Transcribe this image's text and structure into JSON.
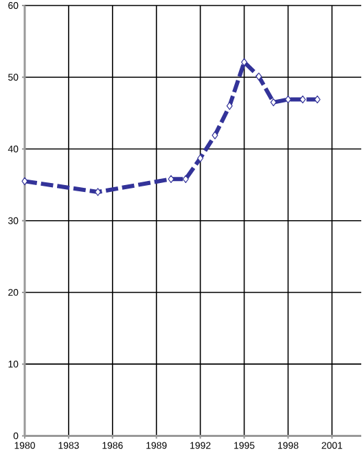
{
  "chart_data": {
    "type": "line",
    "x": [
      1980,
      1985,
      1990,
      1991,
      1992,
      1993,
      1994,
      1995,
      1996,
      1997,
      1998,
      1999,
      2000
    ],
    "values": [
      35.5,
      34.0,
      35.8,
      35.8,
      38.7,
      41.9,
      46.0,
      52.1,
      50.1,
      46.5,
      46.9,
      46.9,
      46.9
    ],
    "color": "#333399",
    "marker": "diamond",
    "line_style": "dashed",
    "grid": true,
    "xlim": [
      1980,
      2003
    ],
    "xticks": [
      1980,
      1983,
      1986,
      1989,
      1992,
      1995,
      1998,
      2001
    ],
    "ylim": [
      0,
      60
    ],
    "yticks": [
      0,
      10,
      20,
      30,
      40,
      50,
      60
    ]
  }
}
